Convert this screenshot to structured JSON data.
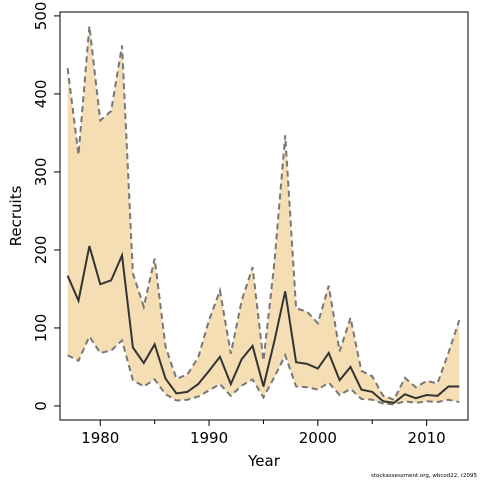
{
  "chart_data": {
    "type": "line",
    "title": "",
    "xlabel": "Year",
    "ylabel": "Recruits",
    "xlim": [
      1976.3,
      2013.8
    ],
    "ylim": [
      -18,
      505
    ],
    "x_ticks": [
      1980,
      1990,
      2000,
      2010
    ],
    "y_ticks": [
      0,
      100,
      200,
      300,
      400,
      500
    ],
    "grid": false,
    "legend": "none",
    "band_fill_color": "#F5DEB3",
    "band_edge_color": "#777777",
    "line_color": "#333333",
    "x": [
      1977,
      1978,
      1979,
      1980,
      1981,
      1982,
      1983,
      1984,
      1985,
      1986,
      1987,
      1988,
      1989,
      1990,
      1991,
      1992,
      1993,
      1994,
      1995,
      1996,
      1997,
      1998,
      1999,
      2000,
      2001,
      2002,
      2003,
      2004,
      2005,
      2006,
      2007,
      2008,
      2009,
      2010,
      2011,
      2012,
      2013
    ],
    "series": [
      {
        "role": "estimate",
        "values": [
          167,
          135,
          205,
          156,
          161,
          193,
          75,
          55,
          79,
          35,
          16,
          18,
          28,
          45,
          63,
          28,
          60,
          77,
          25,
          83,
          147,
          56,
          54,
          48,
          68,
          33,
          50,
          21,
          18,
          6,
          4,
          15,
          10,
          14,
          13,
          25,
          25
        ]
      },
      {
        "role": "lower",
        "values": [
          65,
          58,
          89,
          68,
          71,
          84,
          33,
          25,
          34,
          15,
          7,
          8,
          12,
          20,
          28,
          13,
          26,
          34,
          11,
          37,
          65,
          25,
          24,
          21,
          30,
          14,
          22,
          9,
          8,
          3,
          2,
          6,
          4,
          6,
          5,
          8,
          5
        ]
      },
      {
        "role": "upper",
        "values": [
          433,
          322,
          487,
          366,
          378,
          462,
          170,
          127,
          189,
          76,
          35,
          40,
          62,
          110,
          148,
          67,
          135,
          178,
          58,
          183,
          347,
          125,
          121,
          106,
          154,
          70,
          113,
          45,
          38,
          13,
          8,
          36,
          24,
          32,
          29,
          68,
          110
        ]
      }
    ]
  },
  "footnote": "stockassessment.org, wbcod22, r2095"
}
